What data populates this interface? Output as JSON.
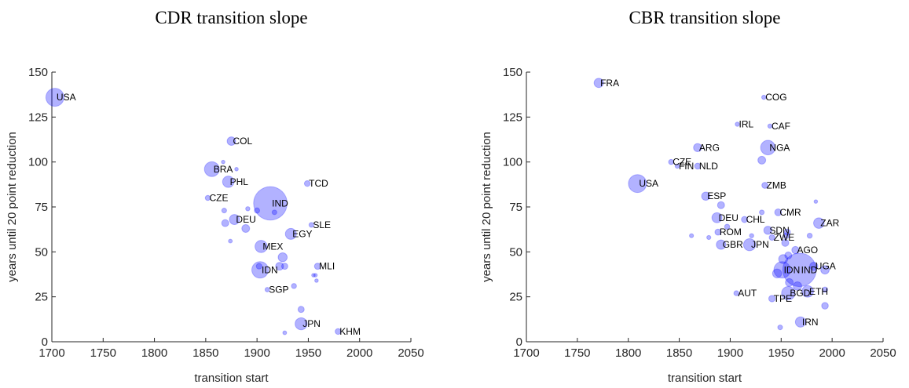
{
  "chart_data": [
    {
      "type": "scatter",
      "title": "CDR transition slope",
      "xlabel": "transition start",
      "ylabel": "years until 20 point reduction",
      "xlim": [
        1700,
        2050
      ],
      "ylim": [
        0,
        150
      ],
      "xticks": [
        1700,
        1750,
        1800,
        1850,
        1900,
        1950,
        2000,
        2050
      ],
      "yticks": [
        0,
        25,
        50,
        75,
        100,
        125,
        150
      ],
      "color": "#0000ff",
      "series": [
        {
          "x": [
            1703,
            1875,
            1856,
            1872,
            1852,
            1913,
            1949,
            1878,
            1953,
            1933,
            1904,
            1959,
            1903,
            1910,
            1943,
            1979,
            1868,
            1869,
            1889,
            1902,
            1925,
            1922,
            1943,
            1936,
            1957,
            1874,
            1867,
            1880,
            1891,
            1900,
            1917,
            1927,
            1927,
            1955,
            1958
          ],
          "y": [
            136,
            111.6,
            96,
            89,
            80,
            77,
            88,
            68,
            65,
            60,
            53,
            42,
            40,
            29,
            10,
            5.7,
            73,
            66,
            63,
            42,
            47,
            42,
            18,
            31,
            37,
            56,
            100,
            96,
            74,
            73,
            72,
            42,
            5,
            37,
            34
          ],
          "sizes": [
            330,
            50,
            210,
            110,
            10,
            1300,
            16,
            80,
            8,
            100,
            130,
            20,
            270,
            6,
            126,
            16,
            8,
            30,
            40,
            15,
            60,
            40,
            20,
            10,
            2,
            3,
            2,
            2,
            5,
            12,
            8,
            20,
            3,
            2,
            2
          ],
          "labels": [
            "USA",
            "COL",
            "BRA",
            "PHL",
            "CZE",
            "IND",
            "TCD",
            "DEU",
            "SLE",
            "EGY",
            "MEX",
            "MLI",
            "IDN",
            "SGP",
            "JPN",
            "KHM",
            null,
            null,
            null,
            null,
            null,
            null,
            null,
            null,
            null,
            null,
            null,
            null,
            null,
            null,
            null,
            null,
            null,
            null,
            null
          ]
        }
      ]
    },
    {
      "type": "scatter",
      "title": "CBR transition slope",
      "xlabel": "transition start",
      "ylabel": "years until 20 point reduction",
      "xlim": [
        1700,
        2050
      ],
      "ylim": [
        0,
        150
      ],
      "xticks": [
        1700,
        1750,
        1800,
        1850,
        1900,
        1950,
        2000,
        2050
      ],
      "yticks": [
        0,
        25,
        50,
        75,
        100,
        125,
        150
      ],
      "color": "#0000ff",
      "series": [
        {
          "x": [
            1771,
            1933,
            1907,
            1939,
            1868,
            1937,
            1842,
            1848,
            1868,
            1809,
            1934,
            1876,
            1887,
            1947,
            1914,
            1987,
            1937,
            1888,
            1941,
            1891,
            1919,
            1964,
            1951,
            1968,
            1982,
            1906,
            1976,
            1957,
            1941,
            1969,
            1891,
            1897,
            1931,
            1956,
            1955,
            1931,
            1993,
            1993,
            1954,
            1978,
            1984,
            1957,
            1949,
            1993,
            1946,
            1958,
            1966,
            1952,
            1862,
            1879,
            1921
          ],
          "y": [
            144,
            136,
            121,
            120,
            108,
            108,
            100,
            97.7,
            97.7,
            88,
            87,
            81,
            69,
            72,
            68,
            66,
            62,
            61,
            58,
            54,
            54,
            51,
            40,
            40,
            42,
            27,
            28,
            27,
            24,
            11,
            76,
            64,
            72,
            61,
            59,
            101,
            29,
            20,
            55,
            59,
            78,
            48,
            8,
            40,
            38,
            33,
            31,
            46,
            59,
            58,
            59
          ],
          "sizes": [
            65,
            5,
            5,
            5,
            45,
            200,
            10,
            5,
            17,
            330,
            18,
            47,
            80,
            27,
            19,
            90,
            45,
            19,
            15,
            67,
            126,
            33,
            270,
            1300,
            45,
            9,
            115,
            165,
            23,
            85,
            30,
            10,
            8,
            20,
            15,
            40,
            12,
            25,
            30,
            10,
            2,
            30,
            8,
            50,
            60,
            40,
            50,
            60,
            4,
            4,
            5
          ],
          "labels": [
            "FRA",
            "COG",
            "IRL",
            "CAF",
            "ARG",
            "NGA",
            "CZE",
            "FIN",
            "NLD",
            "USA",
            "ZMB",
            "ESP",
            "DEU",
            "CMR",
            "CHL",
            "ZAR",
            "SDN",
            "ROM",
            "ZWE",
            "GBR",
            "JPN",
            "AGO",
            "IDN",
            "IND",
            "UGA",
            "AUT",
            "ETH",
            "BGD",
            "TPE",
            "IRN",
            null,
            null,
            null,
            null,
            null,
            null,
            null,
            null,
            null,
            null,
            null,
            null,
            null,
            null,
            null,
            null,
            null,
            null,
            null,
            null,
            null
          ]
        }
      ]
    }
  ]
}
